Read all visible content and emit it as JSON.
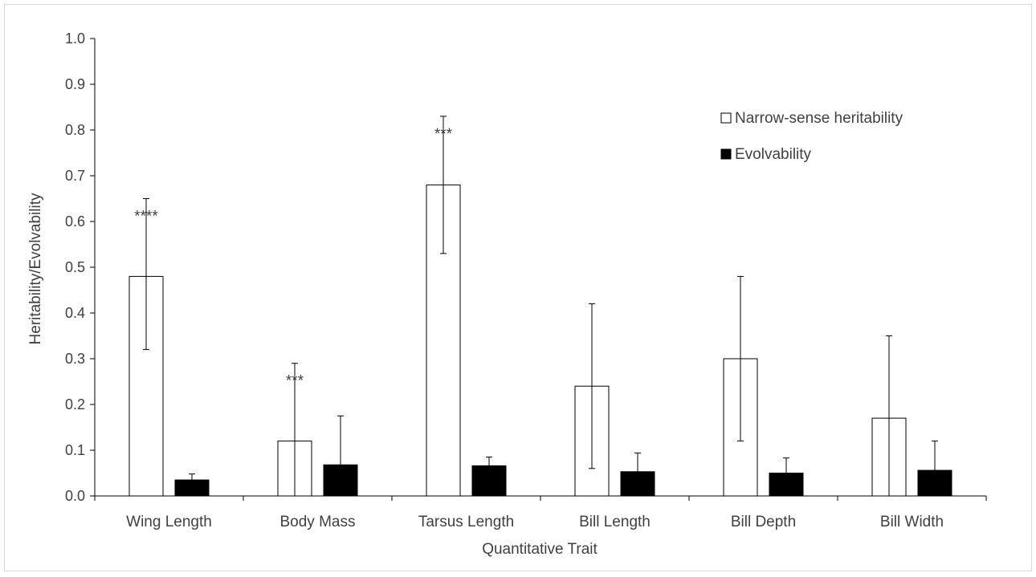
{
  "chart_data": {
    "type": "bar",
    "title": "",
    "xlabel": "Quantitative Trait",
    "ylabel": "Heritability/Evolvability",
    "ylim": [
      0,
      1.0
    ],
    "yticks": [
      "0.0",
      "0.1",
      "0.2",
      "0.3",
      "0.4",
      "0.5",
      "0.6",
      "0.7",
      "0.8",
      "0.9",
      "1.0"
    ],
    "grid": false,
    "legend_position": "top-right",
    "categories": [
      "Wing Length",
      "Body Mass",
      "Tarsus Length",
      "Bill Length",
      "Bill Depth",
      "Bill Width"
    ],
    "series": [
      {
        "name": "Narrow-sense heritability",
        "fill": "#ffffff",
        "stroke": "#000000",
        "values": [
          0.48,
          0.12,
          0.68,
          0.24,
          0.3,
          0.17
        ],
        "error_upper": [
          0.65,
          0.29,
          0.83,
          0.42,
          0.48,
          0.35
        ],
        "error_lower": [
          0.32,
          0.0,
          0.53,
          0.06,
          0.12,
          0.0
        ],
        "significance": [
          "****",
          "***",
          "***",
          "",
          "",
          ""
        ]
      },
      {
        "name": "Evolvability",
        "fill": "#000000",
        "stroke": "#000000",
        "values": [
          0.035,
          0.068,
          0.066,
          0.053,
          0.05,
          0.056
        ],
        "error_upper": [
          0.048,
          0.175,
          0.085,
          0.094,
          0.083,
          0.12
        ],
        "error_lower": [
          0.035,
          0.068,
          0.066,
          0.053,
          0.05,
          0.056
        ],
        "significance": [
          "",
          "",
          "",
          "",
          "",
          ""
        ]
      }
    ]
  }
}
